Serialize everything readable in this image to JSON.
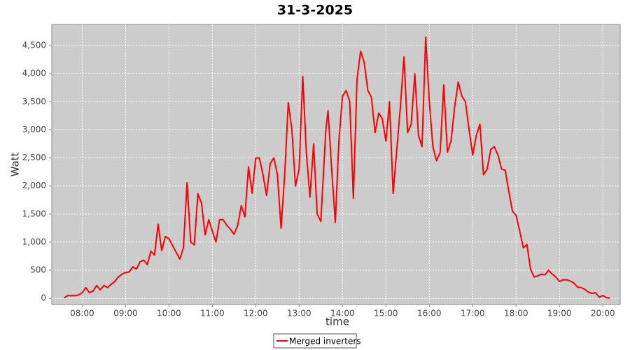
{
  "chart_data": {
    "type": "line",
    "title": "31-3-2025",
    "x_label": "time",
    "y_label": "Watt",
    "x": [
      "07:35",
      "07:40",
      "07:50",
      "07:55",
      "08:00",
      "08:05",
      "08:10",
      "08:15",
      "08:20",
      "08:25",
      "08:30",
      "08:35",
      "08:40",
      "08:45",
      "08:50",
      "08:55",
      "09:00",
      "09:05",
      "09:10",
      "09:15",
      "09:20",
      "09:25",
      "09:30",
      "09:35",
      "09:40",
      "09:45",
      "09:50",
      "09:55",
      "10:00",
      "10:05",
      "10:10",
      "10:15",
      "10:20",
      "10:25",
      "10:30",
      "10:35",
      "10:40",
      "10:45",
      "10:50",
      "10:55",
      "11:00",
      "11:05",
      "11:10",
      "11:15",
      "11:20",
      "11:25",
      "11:30",
      "11:35",
      "11:40",
      "11:45",
      "11:50",
      "11:55",
      "12:00",
      "12:05",
      "12:10",
      "12:15",
      "12:20",
      "12:25",
      "12:30",
      "12:35",
      "12:40",
      "12:45",
      "12:50",
      "12:55",
      "13:00",
      "13:05",
      "13:10",
      "13:15",
      "13:20",
      "13:25",
      "13:30",
      "13:37",
      "13:40",
      "13:45",
      "13:50",
      "13:55",
      "14:00",
      "14:05",
      "14:10",
      "14:15",
      "14:20",
      "14:25",
      "14:30",
      "14:35",
      "14:40",
      "14:45",
      "14:50",
      "14:55",
      "15:00",
      "15:05",
      "15:10",
      "15:20",
      "15:25",
      "15:30",
      "15:35",
      "15:40",
      "15:45",
      "15:50",
      "15:55",
      "16:00",
      "16:05",
      "16:10",
      "16:15",
      "16:20",
      "16:25",
      "16:30",
      "16:35",
      "16:40",
      "16:45",
      "16:50",
      "16:55",
      "17:00",
      "17:05",
      "17:10",
      "17:15",
      "17:20",
      "17:25",
      "17:30",
      "17:35",
      "17:40",
      "17:45",
      "17:50",
      "17:55",
      "18:00",
      "18:05",
      "18:10",
      "18:15",
      "18:20",
      "18:25",
      "18:30",
      "18:35",
      "18:40",
      "18:45",
      "18:50",
      "18:55",
      "19:00",
      "19:05",
      "19:10",
      "19:15",
      "19:20",
      "19:25",
      "19:30",
      "19:35",
      "19:40",
      "19:45",
      "19:50",
      "19:55",
      "20:00",
      "20:05",
      "20:10"
    ],
    "series": [
      {
        "name": "Merged inverters",
        "color": "#ff0000",
        "values": [
          10,
          50,
          50,
          60,
          100,
          190,
          100,
          130,
          230,
          150,
          230,
          190,
          250,
          300,
          380,
          430,
          460,
          470,
          560,
          520,
          650,
          680,
          600,
          840,
          770,
          1320,
          850,
          1100,
          1060,
          940,
          820,
          700,
          900,
          2060,
          1000,
          950,
          1860,
          1700,
          1130,
          1400,
          1200,
          1000,
          1400,
          1400,
          1300,
          1230,
          1140,
          1300,
          1650,
          1450,
          2340,
          1870,
          2500,
          2500,
          2200,
          1830,
          2400,
          2500,
          2200,
          1250,
          2200,
          3480,
          3000,
          2000,
          2300,
          3950,
          2600,
          1800,
          2750,
          1500,
          1370,
          3000,
          3340,
          2300,
          1350,
          2800,
          3600,
          3700,
          3500,
          1780,
          3900,
          4400,
          4200,
          3700,
          3580,
          2950,
          3300,
          3200,
          2800,
          3500,
          1870,
          3400,
          4300,
          2950,
          3100,
          4000,
          2900,
          2700,
          4650,
          3500,
          2700,
          2450,
          2600,
          3800,
          2600,
          2800,
          3400,
          3850,
          3600,
          3500,
          3000,
          2550,
          2900,
          3100,
          2200,
          2300,
          2650,
          2700,
          2550,
          2300,
          2280,
          1900,
          1550,
          1480,
          1200,
          900,
          960,
          520,
          380,
          400,
          430,
          420,
          500,
          430,
          380,
          300,
          330,
          330,
          310,
          270,
          200,
          190,
          160,
          110,
          90,
          100,
          20,
          50,
          10,
          5
        ]
      }
    ],
    "xlim": [
      "07:18",
      "20:24"
    ],
    "xticks": [
      "08:00",
      "09:00",
      "10:00",
      "11:00",
      "12:00",
      "13:00",
      "14:00",
      "15:00",
      "16:00",
      "17:00",
      "18:00",
      "19:00",
      "20:00"
    ],
    "ylim": [
      -110,
      4875
    ],
    "yticks": [
      0,
      500,
      {
        "value": 1000,
        "label": "1,000"
      },
      {
        "value": 1500,
        "label": "1,500"
      },
      {
        "value": 2000,
        "label": "2,000"
      },
      {
        "value": 2500,
        "label": "2,500"
      },
      {
        "value": 3000,
        "label": "3,000"
      },
      {
        "value": 3500,
        "label": "3,500"
      },
      {
        "value": 4000,
        "label": "4,000"
      },
      {
        "value": 4500,
        "label": "4,500"
      }
    ],
    "grid": true,
    "legend": "bottom"
  }
}
